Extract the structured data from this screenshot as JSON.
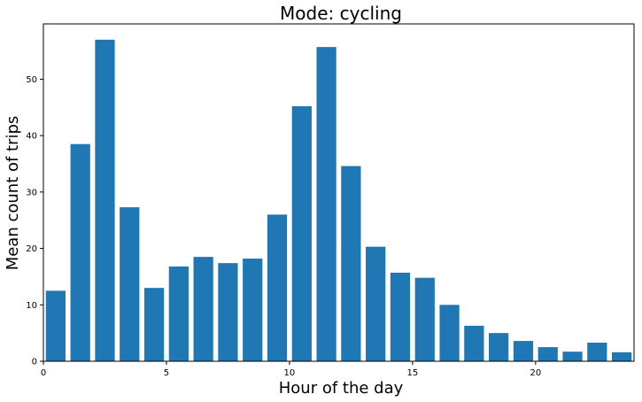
{
  "chart_data": {
    "type": "bar",
    "title": "Mode: cycling",
    "xlabel": "Hour of the day",
    "ylabel": "Mean count of trips",
    "x": [
      0,
      1,
      2,
      3,
      4,
      5,
      6,
      7,
      8,
      9,
      10,
      11,
      12,
      13,
      14,
      15,
      16,
      17,
      18,
      19,
      20,
      21,
      22,
      23
    ],
    "values": [
      12.5,
      38.5,
      57.0,
      27.3,
      13.0,
      16.8,
      18.5,
      17.4,
      18.2,
      26.0,
      45.2,
      55.7,
      34.6,
      20.3,
      15.7,
      14.8,
      10.0,
      6.3,
      5.0,
      3.6,
      2.5,
      1.7,
      3.3,
      1.6
    ],
    "xlim": [
      0,
      24
    ],
    "ylim": [
      0,
      59.8
    ],
    "xticks": [
      0,
      5,
      10,
      15,
      20
    ],
    "yticks": [
      0,
      10,
      20,
      30,
      40,
      50
    ],
    "bar_color": "#1f77b4",
    "grid": false
  }
}
